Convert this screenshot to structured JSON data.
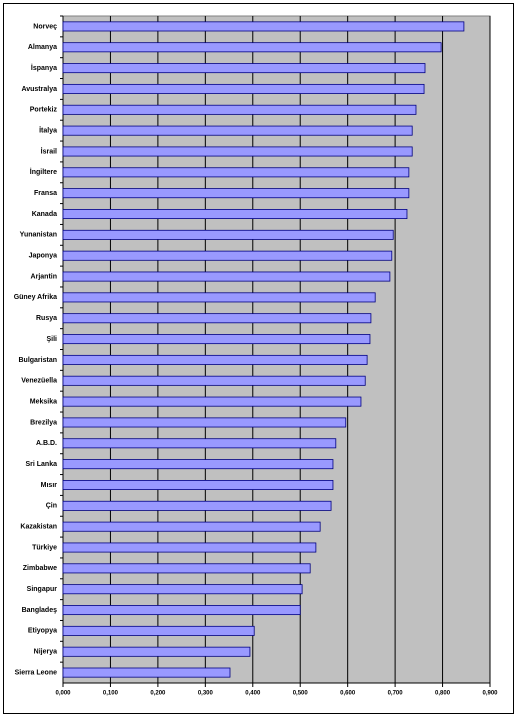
{
  "chart_data": {
    "type": "bar",
    "orientation": "horizontal",
    "categories": [
      "Norveç",
      "Almanya",
      "İspanya",
      "Avustralya",
      "Portekiz",
      "İtalya",
      "İsrail",
      "İngiltere",
      "Fransa",
      "Kanada",
      "Yunanistan",
      "Japonya",
      "Arjantin",
      "Güney Afrika",
      "Rusya",
      "Şili",
      "Bulgaristan",
      "Venezüella",
      "Meksika",
      "Brezilya",
      "A.B.D.",
      "Sri Lanka",
      "Mısır",
      "Çin",
      "Kazakistan",
      "Türkiye",
      "Zimbabwe",
      "Singapur",
      "Bangladeş",
      "Etiyopya",
      "Nijerya",
      "Sierra Leone"
    ],
    "values": [
      0.845,
      0.797,
      0.763,
      0.761,
      0.744,
      0.736,
      0.736,
      0.729,
      0.729,
      0.725,
      0.696,
      0.693,
      0.689,
      0.658,
      0.649,
      0.647,
      0.641,
      0.637,
      0.628,
      0.596,
      0.575,
      0.569,
      0.569,
      0.565,
      0.542,
      0.533,
      0.521,
      0.504,
      0.5,
      0.403,
      0.394,
      0.352
    ],
    "color": "#9999ff",
    "xlim": [
      0,
      0.9
    ],
    "xticks": [
      {
        "value": 0,
        "label": "0,000"
      },
      {
        "value": 0.1,
        "label": "0,100"
      },
      {
        "value": 0.2,
        "label": "0,200"
      },
      {
        "value": 0.3,
        "label": "0,300"
      },
      {
        "value": 0.4,
        "label": "0,400"
      },
      {
        "value": 0.5,
        "label": "0,500"
      },
      {
        "value": 0.6,
        "label": "0,600"
      },
      {
        "value": 0.7,
        "label": "0,700"
      },
      {
        "value": 0.8,
        "label": "0,800"
      },
      {
        "value": 0.9,
        "label": "0,900"
      }
    ],
    "grid": true
  }
}
